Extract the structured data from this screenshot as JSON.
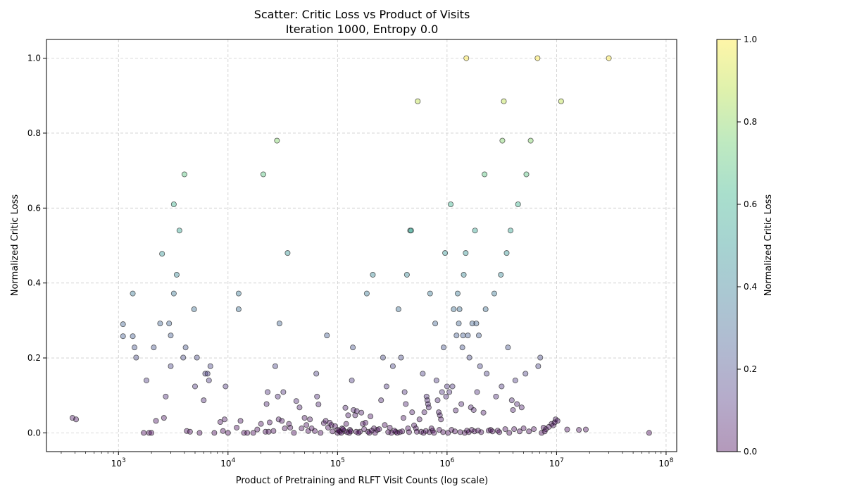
{
  "chart_data": {
    "type": "scatter",
    "title": "Scatter: Critic Loss vs Product of Visits",
    "subtitle": "Iteration 1000, Entropy 0.0",
    "xlabel": "Product of Pretraining and RLFT Visit Counts (log scale)",
    "ylabel": "Normalized Critic Loss",
    "x_scale": "log",
    "xlim": [
      220,
      125000000
    ],
    "ylim": [
      -0.05,
      1.05
    ],
    "x_ticks": [
      1000,
      10000,
      100000,
      1000000,
      10000000,
      100000000
    ],
    "x_tick_labels": [
      "10^3",
      "10^4",
      "10^5",
      "10^6",
      "10^7",
      "10^8"
    ],
    "y_ticks": [
      0.0,
      0.2,
      0.4,
      0.6,
      0.8,
      1.0
    ],
    "y_tick_labels": [
      "0.0",
      "0.2",
      "0.4",
      "0.6",
      "0.8",
      "1.0"
    ],
    "grid": true,
    "colormap": "viridis",
    "point_alpha": 0.4,
    "colorbar": {
      "label": "Normalized Critic Loss",
      "ticks": [
        0.0,
        0.2,
        0.4,
        0.6,
        0.8,
        1.0
      ],
      "tick_labels": [
        "0.0",
        "0.2",
        "0.4",
        "0.6",
        "0.8",
        "1.0"
      ],
      "range": [
        0,
        1
      ]
    },
    "points": [
      [
        380,
        0.04
      ],
      [
        410,
        0.036
      ],
      [
        1100,
        0.29
      ],
      [
        1100,
        0.258
      ],
      [
        1350,
        0.372
      ],
      [
        1350,
        0.258
      ],
      [
        1400,
        0.228
      ],
      [
        1450,
        0.201
      ],
      [
        1700,
        0.0
      ],
      [
        1800,
        0.14
      ],
      [
        1900,
        0.0
      ],
      [
        2000,
        0.0
      ],
      [
        2100,
        0.228
      ],
      [
        2200,
        0.032
      ],
      [
        2400,
        0.292
      ],
      [
        2500,
        0.478
      ],
      [
        2600,
        0.04
      ],
      [
        2700,
        0.097
      ],
      [
        2900,
        0.292
      ],
      [
        3000,
        0.26
      ],
      [
        3000,
        0.178
      ],
      [
        3200,
        0.372
      ],
      [
        3200,
        0.61
      ],
      [
        3400,
        0.422
      ],
      [
        3600,
        0.54
      ],
      [
        3900,
        0.201
      ],
      [
        4000,
        0.69
      ],
      [
        4100,
        0.228
      ],
      [
        4200,
        0.005
      ],
      [
        4500,
        0.003
      ],
      [
        4900,
        0.33
      ],
      [
        5000,
        0.124
      ],
      [
        5200,
        0.201
      ],
      [
        5500,
        0.0
      ],
      [
        6000,
        0.087
      ],
      [
        6200,
        0.158
      ],
      [
        6500,
        0.158
      ],
      [
        6700,
        0.14
      ],
      [
        6900,
        0.178
      ],
      [
        7500,
        0.0
      ],
      [
        8500,
        0.029
      ],
      [
        9000,
        0.005
      ],
      [
        9300,
        0.036
      ],
      [
        9500,
        0.124
      ],
      [
        10000,
        0.0
      ],
      [
        12000,
        0.014
      ],
      [
        12500,
        0.372
      ],
      [
        12500,
        0.33
      ],
      [
        13000,
        0.032
      ],
      [
        14000,
        0.0
      ],
      [
        15000,
        0.0
      ],
      [
        17000,
        0.0
      ],
      [
        18500,
        0.009
      ],
      [
        20000,
        0.024
      ],
      [
        21000,
        0.69
      ],
      [
        22000,
        0.003
      ],
      [
        22500,
        0.077
      ],
      [
        23000,
        0.109
      ],
      [
        23500,
        0.003
      ],
      [
        24000,
        0.028
      ],
      [
        26000,
        0.005
      ],
      [
        27000,
        0.178
      ],
      [
        28000,
        0.78
      ],
      [
        28500,
        0.097
      ],
      [
        29000,
        0.036
      ],
      [
        29500,
        0.292
      ],
      [
        31000,
        0.032
      ],
      [
        32000,
        0.109
      ],
      [
        33000,
        0.012
      ],
      [
        35000,
        0.48
      ],
      [
        36000,
        0.024
      ],
      [
        37000,
        0.014
      ],
      [
        40000,
        0.0
      ],
      [
        42000,
        0.085
      ],
      [
        45000,
        0.068
      ],
      [
        47000,
        0.012
      ],
      [
        50000,
        0.04
      ],
      [
        52000,
        0.021
      ],
      [
        54000,
        0.005
      ],
      [
        56000,
        0.036
      ],
      [
        58000,
        0.012
      ],
      [
        62000,
        0.005
      ],
      [
        64000,
        0.158
      ],
      [
        65000,
        0.097
      ],
      [
        67000,
        0.076
      ],
      [
        70000,
        0.0
      ],
      [
        75000,
        0.026
      ],
      [
        78000,
        0.032
      ],
      [
        80000,
        0.26
      ],
      [
        82000,
        0.014
      ],
      [
        85000,
        0.027
      ],
      [
        88000,
        0.021
      ],
      [
        90000,
        0.004
      ],
      [
        95000,
        0.018
      ],
      [
        100000,
        0.008
      ],
      [
        105000,
        0.003
      ],
      [
        110000,
        0.012
      ],
      [
        115000,
        0.005
      ],
      [
        118000,
        0.067
      ],
      [
        120000,
        0.024
      ],
      [
        125000,
        0.047
      ],
      [
        130000,
        0.008
      ],
      [
        135000,
        0.14
      ],
      [
        138000,
        0.228
      ],
      [
        140000,
        0.061
      ],
      [
        145000,
        0.047
      ],
      [
        150000,
        0.058
      ],
      [
        160000,
        0.003
      ],
      [
        165000,
        0.054
      ],
      [
        170000,
        0.024
      ],
      [
        180000,
        0.027
      ],
      [
        185000,
        0.372
      ],
      [
        190000,
        0.003
      ],
      [
        200000,
        0.044
      ],
      [
        210000,
        0.422
      ],
      [
        215000,
        0.012
      ],
      [
        230000,
        0.008
      ],
      [
        250000,
        0.087
      ],
      [
        260000,
        0.201
      ],
      [
        270000,
        0.021
      ],
      [
        280000,
        0.124
      ],
      [
        300000,
        0.014
      ],
      [
        320000,
        0.178
      ],
      [
        340000,
        0.003
      ],
      [
        360000,
        0.33
      ],
      [
        380000,
        0.201
      ],
      [
        400000,
        0.04
      ],
      [
        410000,
        0.109
      ],
      [
        420000,
        0.077
      ],
      [
        430000,
        0.422
      ],
      [
        440000,
        0.012
      ],
      [
        460000,
        0.54
      ],
      [
        470000,
        0.54
      ],
      [
        480000,
        0.055
      ],
      [
        500000,
        0.02
      ],
      [
        540000,
        0.885
      ],
      [
        560000,
        0.036
      ],
      [
        580000,
        0.003
      ],
      [
        600000,
        0.158
      ],
      [
        620000,
        0.055
      ],
      [
        650000,
        0.097
      ],
      [
        660000,
        0.087
      ],
      [
        670000,
        0.077
      ],
      [
        680000,
        0.068
      ],
      [
        700000,
        0.372
      ],
      [
        720000,
        0.012
      ],
      [
        780000,
        0.292
      ],
      [
        800000,
        0.14
      ],
      [
        820000,
        0.087
      ],
      [
        840000,
        0.055
      ],
      [
        860000,
        0.047
      ],
      [
        880000,
        0.036
      ],
      [
        900000,
        0.109
      ],
      [
        930000,
        0.228
      ],
      [
        960000,
        0.48
      ],
      [
        980000,
        0.097
      ],
      [
        1000000,
        0.124
      ],
      [
        1050000,
        0.109
      ],
      [
        1080000,
        0.61
      ],
      [
        1120000,
        0.124
      ],
      [
        1150000,
        0.33
      ],
      [
        1200000,
        0.06
      ],
      [
        1220000,
        0.26
      ],
      [
        1250000,
        0.372
      ],
      [
        1280000,
        0.292
      ],
      [
        1300000,
        0.33
      ],
      [
        1350000,
        0.077
      ],
      [
        1380000,
        0.228
      ],
      [
        1400000,
        0.26
      ],
      [
        1420000,
        0.422
      ],
      [
        1480000,
        0.48
      ],
      [
        1500000,
        1.0
      ],
      [
        1550000,
        0.26
      ],
      [
        1600000,
        0.201
      ],
      [
        1650000,
        0.068
      ],
      [
        1700000,
        0.292
      ],
      [
        1750000,
        0.061
      ],
      [
        1800000,
        0.54
      ],
      [
        1850000,
        0.292
      ],
      [
        1880000,
        0.109
      ],
      [
        1950000,
        0.26
      ],
      [
        2000000,
        0.178
      ],
      [
        2150000,
        0.054
      ],
      [
        2200000,
        0.69
      ],
      [
        2250000,
        0.33
      ],
      [
        2300000,
        0.158
      ],
      [
        2700000,
        0.372
      ],
      [
        2800000,
        0.097
      ],
      [
        3100000,
        0.422
      ],
      [
        3150000,
        0.124
      ],
      [
        3200000,
        0.78
      ],
      [
        3300000,
        0.885
      ],
      [
        3500000,
        0.48
      ],
      [
        3600000,
        0.228
      ],
      [
        3800000,
        0.54
      ],
      [
        3900000,
        0.087
      ],
      [
        4000000,
        0.061
      ],
      [
        4200000,
        0.14
      ],
      [
        4350000,
        0.077
      ],
      [
        4450000,
        0.61
      ],
      [
        4800000,
        0.068
      ],
      [
        5200000,
        0.158
      ],
      [
        5300000,
        0.69
      ],
      [
        5800000,
        0.78
      ],
      [
        6700000,
        1.0
      ],
      [
        6800000,
        0.178
      ],
      [
        7100000,
        0.201
      ],
      [
        7600000,
        0.014
      ],
      [
        8000000,
        0.01
      ],
      [
        9000000,
        0.024
      ],
      [
        9800000,
        0.036
      ],
      [
        10200000,
        0.032
      ],
      [
        11000000,
        0.885
      ],
      [
        12500000,
        0.009
      ],
      [
        16000000,
        0.008
      ],
      [
        18500000,
        0.009
      ],
      [
        30000000,
        1.0
      ],
      [
        70000000,
        0.0
      ],
      [
        100000,
        0.0
      ],
      [
        103000,
        0.006
      ],
      [
        108000,
        0.0
      ],
      [
        112000,
        0.01
      ],
      [
        122000,
        0.002
      ],
      [
        128000,
        0.0
      ],
      [
        132000,
        0.004
      ],
      [
        148000,
        0.003
      ],
      [
        155000,
        0.0
      ],
      [
        175000,
        0.01
      ],
      [
        195000,
        0.0
      ],
      [
        205000,
        0.006
      ],
      [
        220000,
        0.0
      ],
      [
        240000,
        0.01
      ],
      [
        290000,
        0.002
      ],
      [
        310000,
        0.0
      ],
      [
        330000,
        0.006
      ],
      [
        350000,
        0.0
      ],
      [
        370000,
        0.002
      ],
      [
        390000,
        0.004
      ],
      [
        450000,
        0.002
      ],
      [
        520000,
        0.012
      ],
      [
        530000,
        0.003
      ],
      [
        610000,
        0.0
      ],
      [
        640000,
        0.005
      ],
      [
        690000,
        0.002
      ],
      [
        740000,
        0.006
      ],
      [
        760000,
        0.0
      ],
      [
        850000,
        0.008
      ],
      [
        920000,
        0.002
      ],
      [
        1020000,
        0.0
      ],
      [
        1100000,
        0.008
      ],
      [
        1180000,
        0.004
      ],
      [
        1320000,
        0.002
      ],
      [
        1450000,
        0.0
      ],
      [
        1520000,
        0.006
      ],
      [
        1580000,
        0.002
      ],
      [
        1680000,
        0.008
      ],
      [
        1780000,
        0.004
      ],
      [
        1920000,
        0.006
      ],
      [
        2050000,
        0.002
      ],
      [
        2400000,
        0.006
      ],
      [
        2500000,
        0.008
      ],
      [
        2600000,
        0.004
      ],
      [
        2900000,
        0.006
      ],
      [
        3000000,
        0.002
      ],
      [
        3400000,
        0.01
      ],
      [
        3700000,
        0.0
      ],
      [
        4100000,
        0.01
      ],
      [
        4600000,
        0.004
      ],
      [
        5000000,
        0.012
      ],
      [
        5600000,
        0.004
      ],
      [
        6200000,
        0.01
      ],
      [
        7300000,
        0.0
      ],
      [
        7800000,
        0.004
      ],
      [
        8500000,
        0.016
      ],
      [
        9300000,
        0.02
      ],
      [
        9600000,
        0.028
      ]
    ]
  }
}
